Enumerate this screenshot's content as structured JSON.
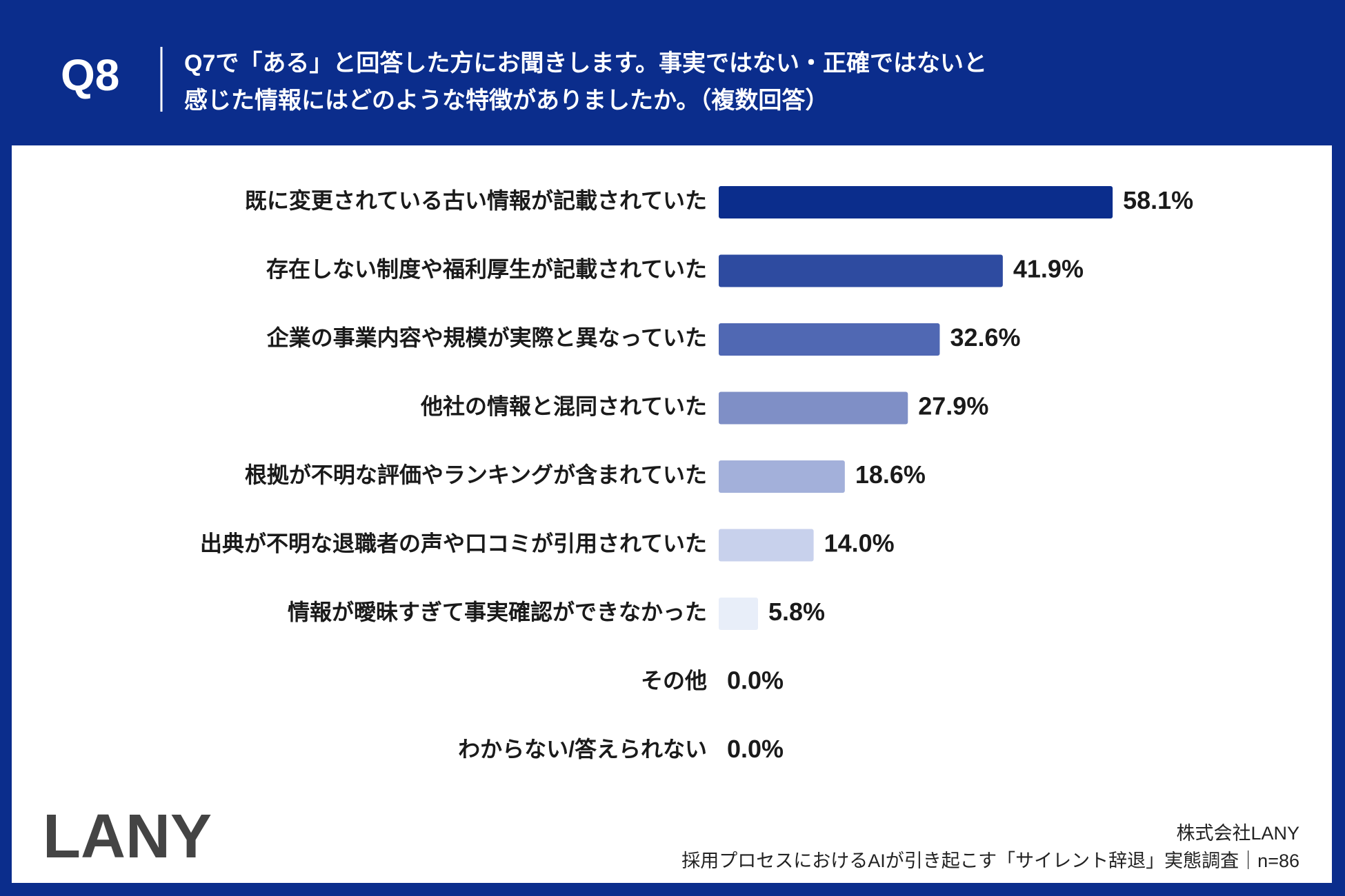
{
  "question_id": "Q8",
  "title_lines": [
    "Q7で「ある」と回答した方にお聞きします。事実ではない・正確ではないと",
    "感じた情報にはどのような特徴がありましたか。（複数回答）"
  ],
  "chart_data": {
    "type": "bar",
    "orientation": "horizontal",
    "categories": [
      "既に変更されている古い情報が記載されていた",
      "存在しない制度や福利厚生が記載されていた",
      "企業の事業内容や規模が実際と異なっていた",
      "他社の情報と混同されていた",
      "根拠が不明な評価やランキングが含まれていた",
      "出典が不明な退職者の声や口コミが引用されていた",
      "情報が曖昧すぎて事実確認ができなかった",
      "その他",
      "わからない/答えられない"
    ],
    "values": [
      58.1,
      41.9,
      32.6,
      27.9,
      18.6,
      14.0,
      5.8,
      0.0,
      0.0
    ],
    "value_labels": [
      "58.1%",
      "41.9%",
      "32.6%",
      "27.9%",
      "18.6%",
      "14.0%",
      "5.8%",
      "0.0%",
      "0.0%"
    ],
    "colors": [
      "#0b2d8c",
      "#2e4ba0",
      "#5068b3",
      "#7f8fc6",
      "#a3b0da",
      "#c8d1ec",
      "#e8eef9",
      "#e8eef9",
      "#e8eef9"
    ]
  },
  "footer": {
    "logo": "LANY",
    "company": "株式会社LANY",
    "source": "採用プロセスにおけるAIが引き起こす「サイレント辞退」実態調査｜n=86"
  }
}
